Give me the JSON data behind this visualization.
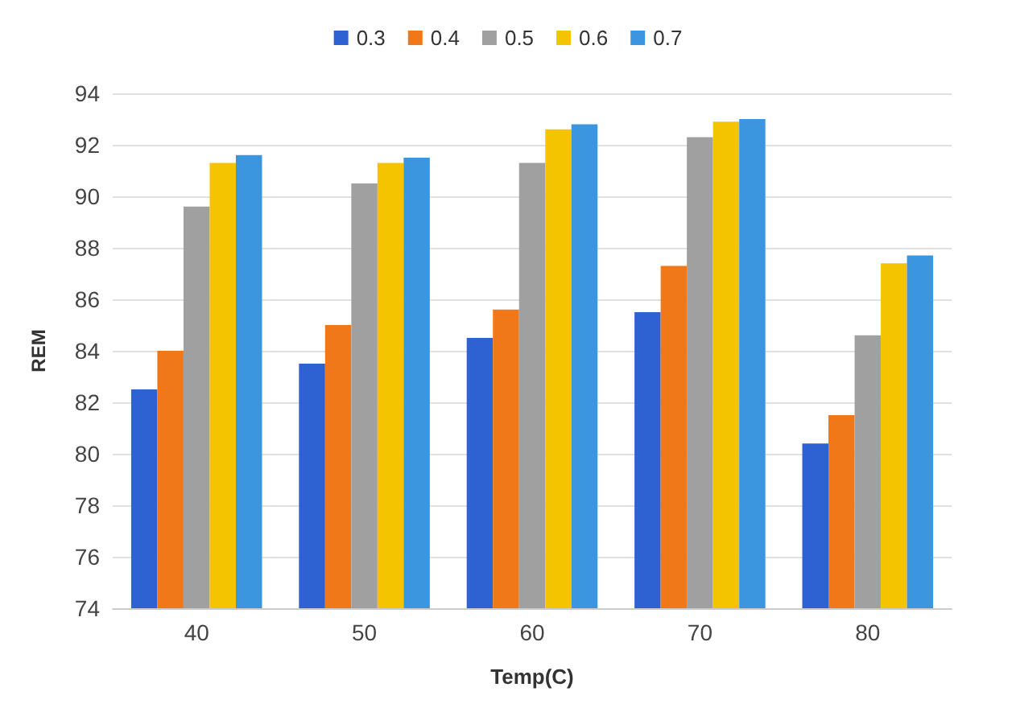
{
  "chart_data": {
    "type": "bar",
    "xlabel": "Temp(C)",
    "ylabel": "REM",
    "categories": [
      "40",
      "50",
      "60",
      "70",
      "80"
    ],
    "series": [
      {
        "name": "0.3",
        "color": "#2e62d2",
        "values": [
          82.5,
          83.5,
          84.5,
          85.5,
          80.4
        ]
      },
      {
        "name": "0.4",
        "color": "#f07818",
        "values": [
          84,
          85,
          85.6,
          87.3,
          81.5
        ]
      },
      {
        "name": "0.5",
        "color": "#a0a0a0",
        "values": [
          89.6,
          90.5,
          91.3,
          92.3,
          84.6
        ]
      },
      {
        "name": "0.6",
        "color": "#f5c400",
        "values": [
          91.3,
          91.3,
          92.6,
          92.9,
          87.4
        ]
      },
      {
        "name": "0.7",
        "color": "#3c95df",
        "values": [
          91.6,
          91.5,
          92.8,
          93,
          87.7
        ]
      }
    ],
    "ylim": [
      74,
      94
    ],
    "yticks": [
      74,
      76,
      78,
      80,
      82,
      84,
      86,
      88,
      90,
      92,
      94
    ],
    "grid": "y",
    "legend": "top"
  }
}
